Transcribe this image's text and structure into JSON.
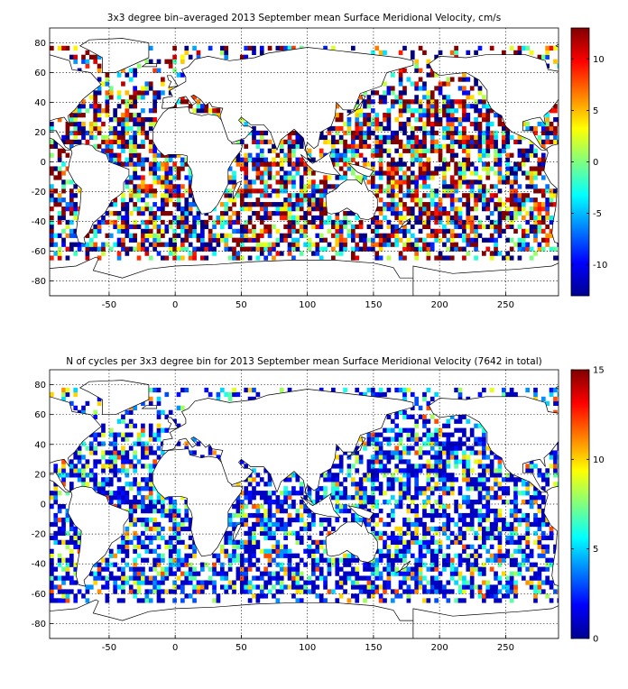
{
  "chart_data": [
    {
      "type": "heatmap",
      "title": "3x3 degree bin–averaged 2013 September mean Surface Meridional Velocity, cm/s",
      "xlim": [
        -95,
        290
      ],
      "ylim": [
        -90,
        90
      ],
      "x_ticks": [
        "-50",
        "0",
        "50",
        "100",
        "150",
        "200",
        "250"
      ],
      "y_ticks": [
        "80",
        "60",
        "40",
        "20",
        "0",
        "-20",
        "-40",
        "-60",
        "-80"
      ],
      "grid": true,
      "bin_size_deg": 3,
      "colorbar": {
        "colormap": "jet",
        "range": [
          -13,
          13
        ],
        "ticks": [
          "10",
          "5",
          "0",
          "-5",
          "-10"
        ]
      }
    },
    {
      "type": "heatmap",
      "title": "N of cycles per 3x3 degree bin for 2013 September mean Surface Meridional Velocity (7642 in total)",
      "xlim": [
        -95,
        290
      ],
      "ylim": [
        -90,
        90
      ],
      "x_ticks": [
        "-50",
        "0",
        "50",
        "100",
        "150",
        "200",
        "250"
      ],
      "y_ticks": [
        "80",
        "60",
        "40",
        "20",
        "0",
        "-20",
        "-40",
        "-60",
        "-80"
      ],
      "grid": true,
      "bin_size_deg": 3,
      "colorbar": {
        "colormap": "jet",
        "range": [
          0,
          15
        ],
        "ticks": [
          "15",
          "10",
          "5",
          "0"
        ]
      }
    }
  ]
}
